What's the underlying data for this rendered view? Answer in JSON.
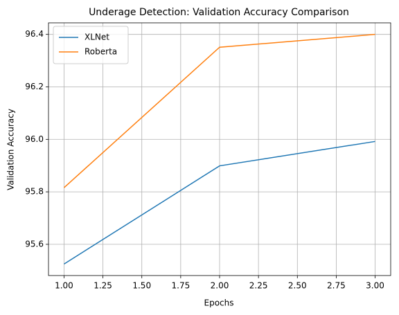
{
  "chart_data": {
    "type": "line",
    "title": "Underage Detection: Validation Accuracy Comparison",
    "x_label": "Epochs",
    "y_label": "Validation Accuracy",
    "x": [
      1,
      2,
      3
    ],
    "series": [
      {
        "name": "XLNet",
        "color": "#1f77b4",
        "values": [
          95.525,
          95.899,
          95.992
        ]
      },
      {
        "name": "Roberta",
        "color": "#ff7f0e",
        "values": [
          95.816,
          96.351,
          96.4
        ]
      }
    ],
    "xlim": [
      0.9,
      3.1
    ],
    "xticks": [
      {
        "value": 1,
        "label": "1.00"
      },
      {
        "value": 1.25,
        "label": "1.25"
      },
      {
        "value": 1.5,
        "label": "1.50"
      },
      {
        "value": 1.75,
        "label": "1.75"
      },
      {
        "value": 2,
        "label": "2.00"
      },
      {
        "value": 2.25,
        "label": "2.25"
      },
      {
        "value": 2.5,
        "label": "2.50"
      },
      {
        "value": 2.75,
        "label": "2.75"
      },
      {
        "value": 3,
        "label": "3.00"
      }
    ],
    "ylim": [
      95.481,
      96.444
    ],
    "yticks": [
      95.6,
      95.8,
      {
        "value": 96,
        "label": "96.0"
      },
      96.2,
      96.4
    ],
    "grid": true,
    "legend": "upper-left"
  }
}
